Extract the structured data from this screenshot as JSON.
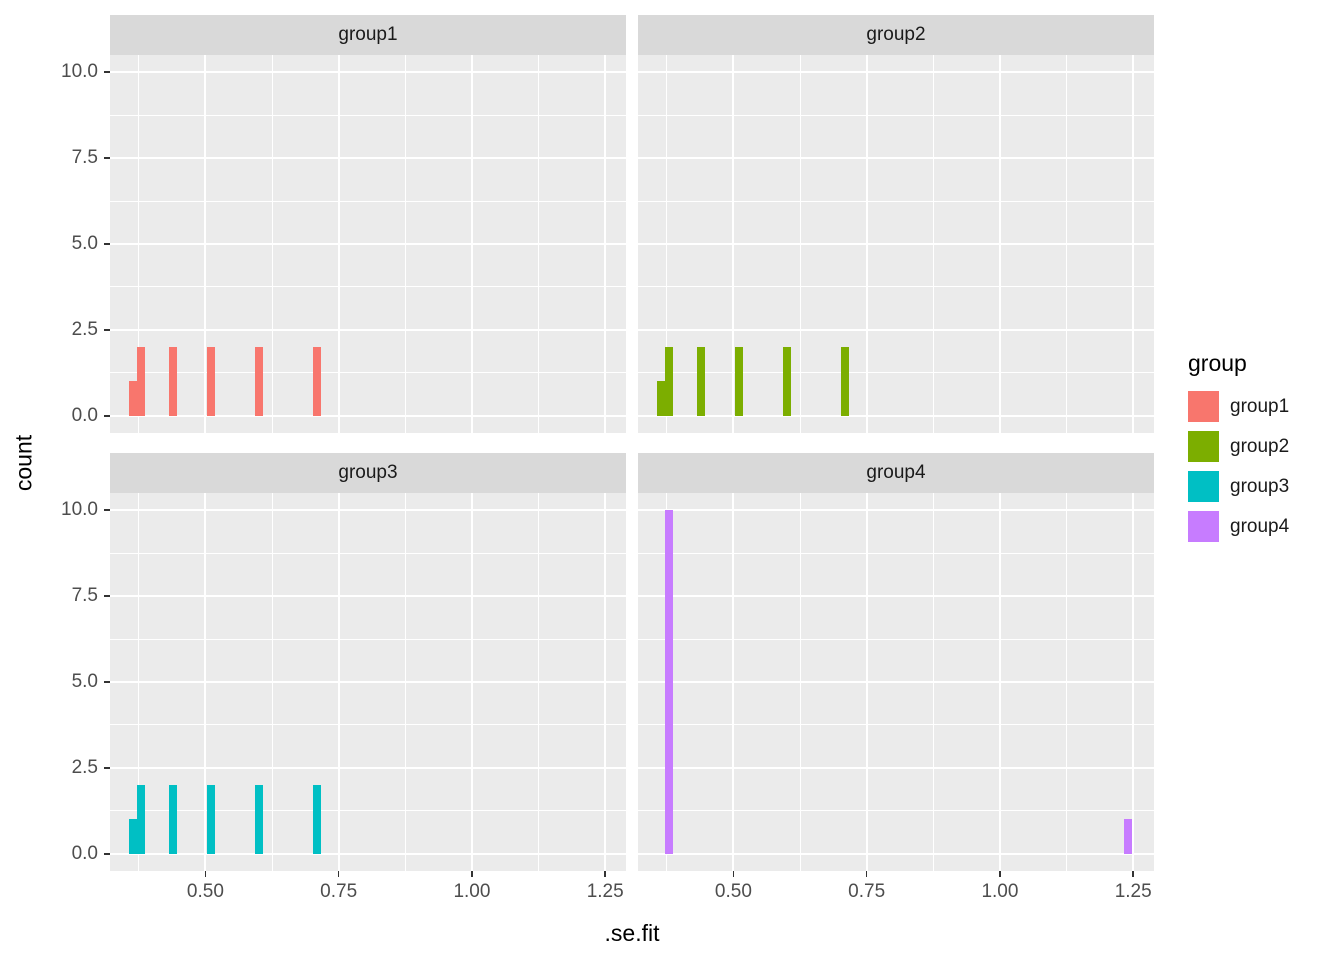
{
  "chart_data": {
    "type": "bar",
    "subtype": "faceted-histogram",
    "title": "",
    "xlabel": ".se.fit",
    "ylabel": "count",
    "x_domain": [
      0.321,
      1.289
    ],
    "y_domain": [
      -0.5,
      10.5
    ],
    "x_ticks": [
      0.5,
      0.75,
      1.0,
      1.25
    ],
    "x_tick_labels": [
      "0.50",
      "0.75",
      "1.00",
      "1.25"
    ],
    "y_ticks": [
      0,
      2.5,
      5,
      7.5,
      10
    ],
    "y_tick_labels": [
      "0.0",
      "2.5",
      "5.0",
      "7.5",
      "10.0"
    ],
    "x_minor_ticks": [
      0.375,
      0.625,
      0.875,
      1.125
    ],
    "y_minor_ticks": [
      1.25,
      3.75,
      6.25,
      8.75
    ],
    "binwidth": 0.015,
    "grid": "on",
    "legend_position": "right",
    "facets": [
      {
        "label": "group1",
        "color": "#F8766D",
        "bins": [
          {
            "x": 0.365,
            "count": 1
          },
          {
            "x": 0.38,
            "count": 2
          },
          {
            "x": 0.44,
            "count": 2
          },
          {
            "x": 0.51,
            "count": 2
          },
          {
            "x": 0.6,
            "count": 2
          },
          {
            "x": 0.71,
            "count": 2
          }
        ]
      },
      {
        "label": "group2",
        "color": "#7CAE00",
        "bins": [
          {
            "x": 0.365,
            "count": 1
          },
          {
            "x": 0.38,
            "count": 2
          },
          {
            "x": 0.44,
            "count": 2
          },
          {
            "x": 0.51,
            "count": 2
          },
          {
            "x": 0.6,
            "count": 2
          },
          {
            "x": 0.71,
            "count": 2
          }
        ]
      },
      {
        "label": "group3",
        "color": "#00BFC4",
        "bins": [
          {
            "x": 0.365,
            "count": 1
          },
          {
            "x": 0.38,
            "count": 2
          },
          {
            "x": 0.44,
            "count": 2
          },
          {
            "x": 0.51,
            "count": 2
          },
          {
            "x": 0.6,
            "count": 2
          },
          {
            "x": 0.71,
            "count": 2
          }
        ]
      },
      {
        "label": "group4",
        "color": "#C77CFF",
        "bins": [
          {
            "x": 0.38,
            "count": 10
          },
          {
            "x": 1.24,
            "count": 1
          }
        ]
      }
    ],
    "legend": {
      "title": "group",
      "entries": [
        {
          "label": "group1",
          "color": "#F8766D"
        },
        {
          "label": "group2",
          "color": "#7CAE00"
        },
        {
          "label": "group3",
          "color": "#00BFC4"
        },
        {
          "label": "group4",
          "color": "#C77CFF"
        }
      ]
    }
  },
  "theme": {
    "panel_background": "#EBEBEB",
    "strip_background": "#D9D9D9",
    "gridline_color": "#FFFFFF",
    "axis_text_color": "#4D4D4D",
    "title_text_color": "#000000",
    "tick_mark_color": "#333333"
  }
}
